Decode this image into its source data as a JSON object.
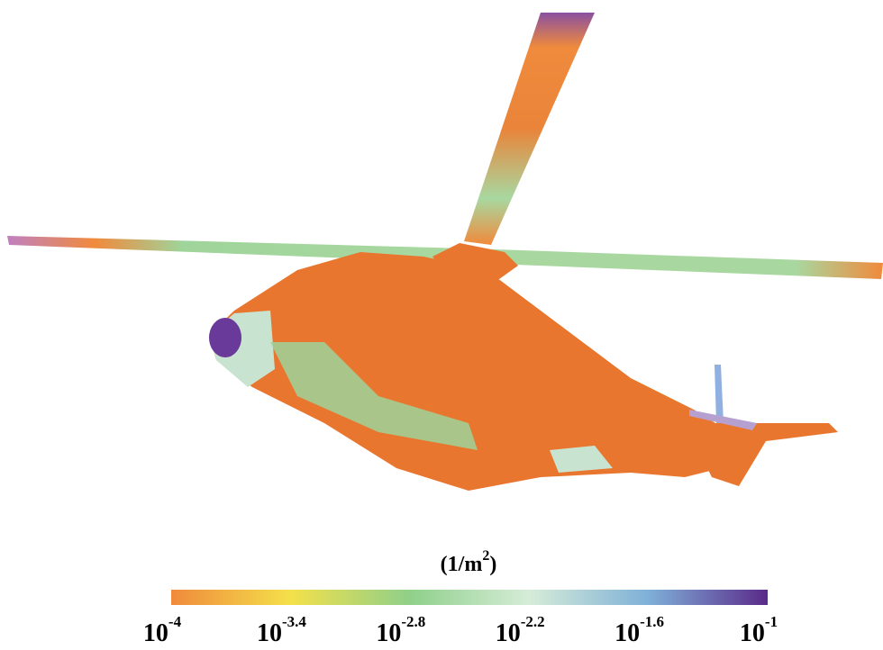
{
  "colorbar": {
    "unit": [
      "(1/m",
      "2",
      ")"
    ],
    "scale": "log",
    "tick_base": "10",
    "lim": [
      -4,
      -1
    ],
    "ticks": [
      -4,
      -3.4,
      -2.8,
      -2.2,
      -1.6,
      -1
    ],
    "colors": [
      "#f08a3c",
      "#f4e04a",
      "#8fd08a",
      "#d6ecd8",
      "#7fb0d8",
      "#5a2a8a"
    ]
  }
}
